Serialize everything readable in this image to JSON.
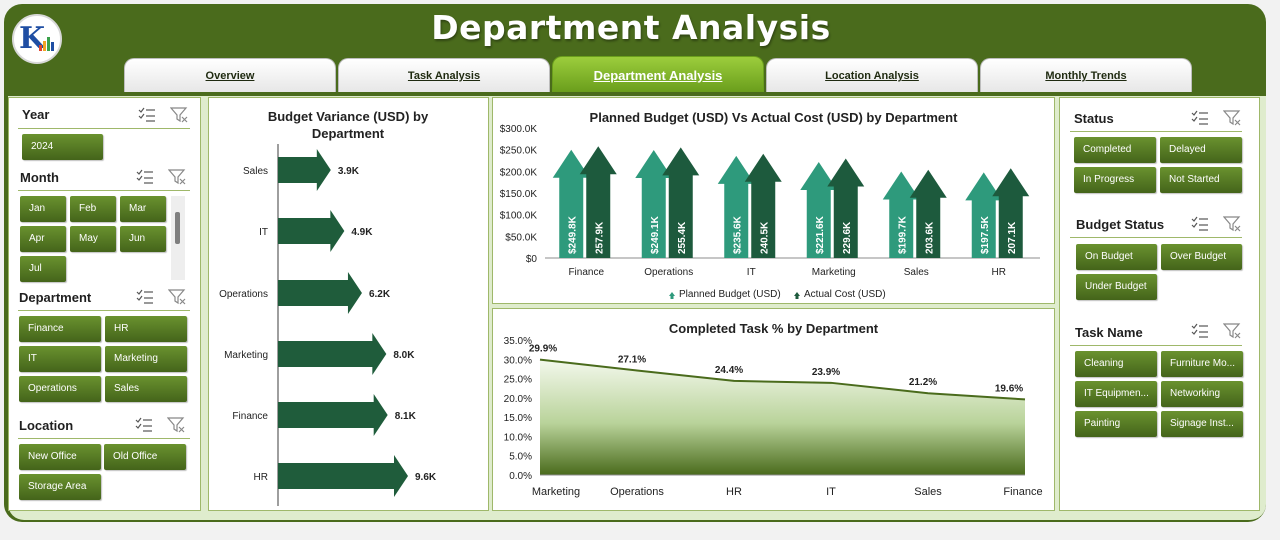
{
  "header": {
    "title": "Department Analysis"
  },
  "tabs": [
    {
      "label": "Overview"
    },
    {
      "label": "Task Analysis"
    },
    {
      "label": "Department Analysis"
    },
    {
      "label": "Location Analysis"
    },
    {
      "label": "Monthly Trends"
    }
  ],
  "filters": {
    "year": {
      "title": "Year",
      "options": [
        "2024"
      ]
    },
    "month": {
      "title": "Month",
      "options": [
        "Jan",
        "Feb",
        "Mar",
        "Apr",
        "May",
        "Jun",
        "Jul"
      ]
    },
    "department": {
      "title": "Department",
      "options": [
        "Finance",
        "HR",
        "IT",
        "Marketing",
        "Operations",
        "Sales"
      ]
    },
    "location": {
      "title": "Location",
      "options": [
        "New Office",
        "Old Office",
        "Storage Area"
      ]
    },
    "status": {
      "title": "Status",
      "options": [
        "Completed",
        "Delayed",
        "In Progress",
        "Not Started"
      ]
    },
    "budget_status": {
      "title": "Budget Status",
      "options": [
        "On Budget",
        "Over Budget",
        "Under Budget"
      ]
    },
    "task_name": {
      "title": "Task Name",
      "options": [
        "Cleaning",
        "Furniture Mo...",
        "IT Equipmen...",
        "Networking",
        "Painting",
        "Signage Inst..."
      ]
    }
  },
  "colors": {
    "brand": "#4a6b1c",
    "accent": "#76a82c",
    "teal": "#2e9a7c",
    "dark_green": "#1d5a3d",
    "area": "#4a6b1c"
  },
  "chart_data": [
    {
      "type": "bar",
      "title": "Budget Variance (USD) by Department",
      "categories": [
        "Sales",
        "IT",
        "Operations",
        "Marketing",
        "Finance",
        "HR"
      ],
      "values": [
        3.9,
        4.9,
        6.2,
        8.0,
        8.1,
        9.6
      ],
      "value_labels": [
        "3.9K",
        "4.9K",
        "6.2K",
        "8.0K",
        "8.1K",
        "9.6K"
      ],
      "unit": "K USD",
      "orientation": "horizontal"
    },
    {
      "type": "bar",
      "title": "Planned Budget (USD) Vs Actual Cost (USD) by Department",
      "categories": [
        "Finance",
        "Operations",
        "IT",
        "Marketing",
        "Sales",
        "HR"
      ],
      "series": [
        {
          "name": "Planned Budget (USD)",
          "values": [
            249.8,
            249.1,
            235.6,
            221.6,
            199.7,
            197.5
          ],
          "labels": [
            "$249.8K",
            "$249.1K",
            "$235.6K",
            "$221.6K",
            "$199.7K",
            "$197.5K"
          ]
        },
        {
          "name": "Actual Cost (USD)",
          "values": [
            257.9,
            255.4,
            240.5,
            229.6,
            203.6,
            207.1
          ],
          "labels": [
            "257.9K",
            "255.4K",
            "240.5K",
            "229.6K",
            "203.6K",
            "207.1K"
          ]
        }
      ],
      "yticks": [
        "$0",
        "$50.0K",
        "$100.0K",
        "$150.0K",
        "$200.0K",
        "$250.0K",
        "$300.0K"
      ],
      "ylim": [
        0,
        300
      ],
      "legend": "bottom"
    },
    {
      "type": "area",
      "title": "Completed Task % by Department",
      "categories": [
        "Marketing",
        "Operations",
        "HR",
        "IT",
        "Sales",
        "Finance"
      ],
      "values": [
        29.9,
        27.1,
        24.4,
        23.9,
        21.2,
        19.6
      ],
      "value_labels": [
        "29.9%",
        "27.1%",
        "24.4%",
        "23.9%",
        "21.2%",
        "19.6%"
      ],
      "yticks": [
        "0.0%",
        "5.0%",
        "10.0%",
        "15.0%",
        "20.0%",
        "25.0%",
        "30.0%",
        "35.0%"
      ],
      "ylim": [
        0,
        35
      ]
    }
  ]
}
